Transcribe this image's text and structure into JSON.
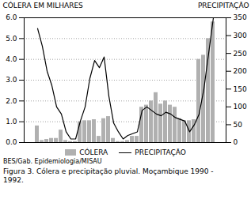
{
  "chart_data": {
    "type": "bar",
    "categories": [
      null,
      null,
      null,
      null,
      null,
      null,
      null,
      null,
      null,
      null,
      null,
      null,
      null,
      null,
      null,
      null,
      null,
      null,
      null,
      null,
      null,
      null,
      null,
      null,
      null,
      null,
      null,
      null,
      null,
      null,
      null,
      null,
      null,
      null,
      null,
      null,
      null,
      null
    ],
    "series": [
      {
        "name": "CÓLERA",
        "type": "bar",
        "color": "#b0b0b0",
        "values": [
          0.8,
          0.1,
          0.15,
          0.2,
          0.2,
          0.6,
          0.1,
          0.05,
          0.05,
          1.0,
          1.05,
          1.05,
          1.1,
          0.3,
          1.15,
          1.25,
          0.2,
          0.05,
          0.05,
          0.1,
          0.3,
          0.3,
          1.7,
          1.8,
          2.0,
          2.4,
          1.85,
          2.0,
          1.8,
          1.7,
          1.15,
          1.05,
          1.05,
          1.1,
          4.0,
          4.2,
          5.0,
          5.8
        ]
      },
      {
        "name": "PRECIPITAÇÃO",
        "type": "line",
        "color": "#000000",
        "axis": "y2",
        "values": [
          320,
          270,
          200,
          160,
          100,
          80,
          30,
          10,
          10,
          60,
          100,
          180,
          230,
          210,
          240,
          130,
          55,
          30,
          10,
          20,
          25,
          30,
          90,
          100,
          90,
          80,
          75,
          85,
          80,
          70,
          65,
          60,
          30,
          50,
          80,
          150,
          250,
          350
        ]
      }
    ],
    "ylabel": "CÓLERA EM MILHARES",
    "y2label": "PRECIPITAÇÃO",
    "ylim": [
      0,
      6
    ],
    "yticks": [
      0,
      1,
      2,
      3,
      4,
      5,
      6
    ],
    "y2lim": [
      0,
      350
    ],
    "y2ticks": [
      0,
      50,
      100,
      150,
      200,
      250,
      300,
      350
    ],
    "grid": true,
    "legend": "bottom",
    "annotations": [
      "BES/Gab. Epidemiologia/MISAU",
      "Figura 3. Cólera e precipitação pluvial. Moçambique 1990 -\n1992."
    ]
  }
}
